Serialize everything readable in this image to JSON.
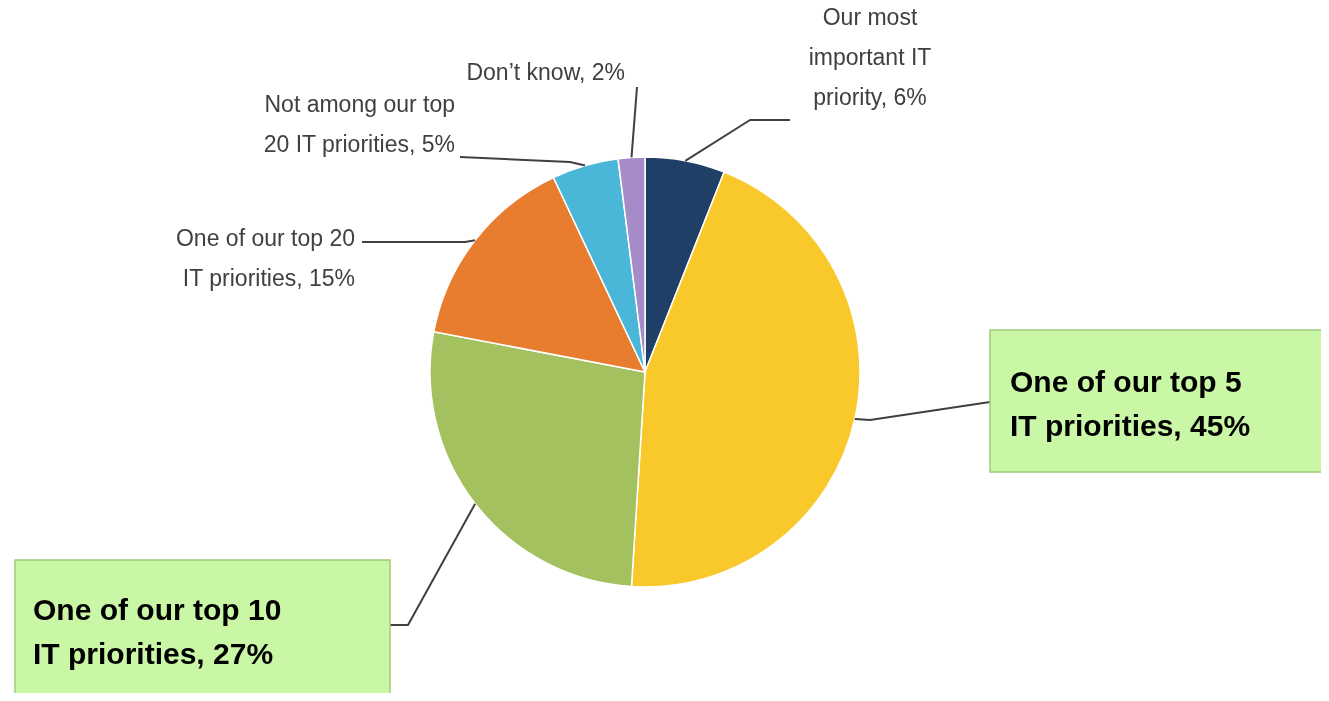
{
  "chart_data": {
    "type": "pie",
    "categories": [
      "Our most important IT priority",
      "One of our top 5 IT priorities",
      "One of our top 10 IT priorities",
      "One of our top 20 IT priorities",
      "Not among our top 20 IT priorities",
      "Don’t know"
    ],
    "values": [
      6,
      45,
      27,
      15,
      5,
      2
    ],
    "value_labels": [
      "6%",
      "45%",
      "27%",
      "15%",
      "5%",
      "2%"
    ],
    "colors": [
      "#1f3f66",
      "#f9c92b",
      "#a4c160",
      "#e97d2f",
      "#4ab6d8",
      "#a58bc8"
    ],
    "legend": false
  }
}
